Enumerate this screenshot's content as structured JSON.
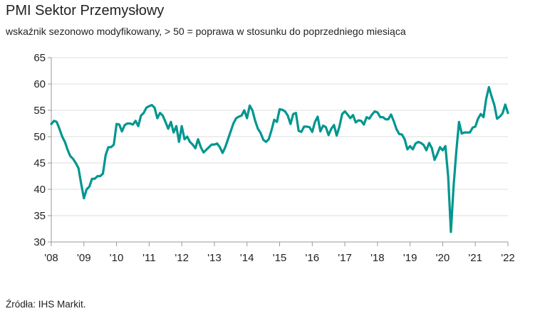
{
  "chart_data": {
    "type": "line",
    "title": "PMI Sektor Przemysłowy",
    "subtitle": "wskaźnik sezonowo modyfikowany, > 50 = poprawa w stosunku do poprzedniego miesiąca",
    "source": "Źródła: IHS Markit.",
    "xlabel": "",
    "ylabel": "",
    "ylim": [
      30,
      65
    ],
    "yticks": [
      "30",
      "35",
      "40",
      "45",
      "50",
      "55",
      "60",
      "65"
    ],
    "xticks": [
      "'08",
      "'09",
      "'10",
      "'11",
      "'12",
      "'13",
      "'14",
      "'15",
      "'16",
      "'17",
      "'18",
      "'19",
      "'20",
      "'21",
      "'22"
    ],
    "x_start": "2008-01",
    "x_frequency": "monthly",
    "grid": "horizontal",
    "line_color": "#00968f",
    "values": [
      52.4,
      53.0,
      52.8,
      51.5,
      50.0,
      49.0,
      47.5,
      46.3,
      45.8,
      45.0,
      44.0,
      41.0,
      38.3,
      40.0,
      40.5,
      42.0,
      42.0,
      42.5,
      42.5,
      43.0,
      46.5,
      48.0,
      48.0,
      48.5,
      52.4,
      52.3,
      51.0,
      52.2,
      52.5,
      52.5,
      52.3,
      53.0,
      52.0,
      54.0,
      54.5,
      55.5,
      55.8,
      56.0,
      55.5,
      53.5,
      54.5,
      54.0,
      52.8,
      51.5,
      52.8,
      50.8,
      52.0,
      49.0,
      52.0,
      49.5,
      50.0,
      49.0,
      48.5,
      47.8,
      49.5,
      48.0,
      47.0,
      47.5,
      48.0,
      48.5,
      48.5,
      48.7,
      48.0,
      46.9,
      48.0,
      49.5,
      51.0,
      52.5,
      53.5,
      53.8,
      54.0,
      55.0,
      53.5,
      55.9,
      55.0,
      53.0,
      51.5,
      50.7,
      49.4,
      49.0,
      49.5,
      51.2,
      53.2,
      52.8,
      55.2,
      55.1,
      54.8,
      54.0,
      52.4,
      54.3,
      54.5,
      51.1,
      50.9,
      51.9,
      51.9,
      51.8,
      50.9,
      52.8,
      53.8,
      51.0,
      52.1,
      51.8,
      50.3,
      51.5,
      52.2,
      50.2,
      51.9,
      54.3,
      54.8,
      54.2,
      53.5,
      54.1,
      52.7,
      53.1,
      53.0,
      52.3,
      53.7,
      53.4,
      54.2,
      54.8,
      54.6,
      53.7,
      53.7,
      53.3,
      53.3,
      54.2,
      52.9,
      51.4,
      50.5,
      50.4,
      49.5,
      47.6,
      48.2,
      47.6,
      48.7,
      49.0,
      48.8,
      48.4,
      47.4,
      48.8,
      47.8,
      45.6,
      46.7,
      48.0,
      47.4,
      48.2,
      42.4,
      31.9,
      40.6,
      47.2,
      52.8,
      50.6,
      50.8,
      50.8,
      50.8,
      51.7,
      51.9,
      53.4,
      54.3,
      53.7,
      57.2,
      59.4,
      57.6,
      56.0,
      53.4,
      53.8,
      54.4,
      56.1,
      54.5
    ]
  }
}
